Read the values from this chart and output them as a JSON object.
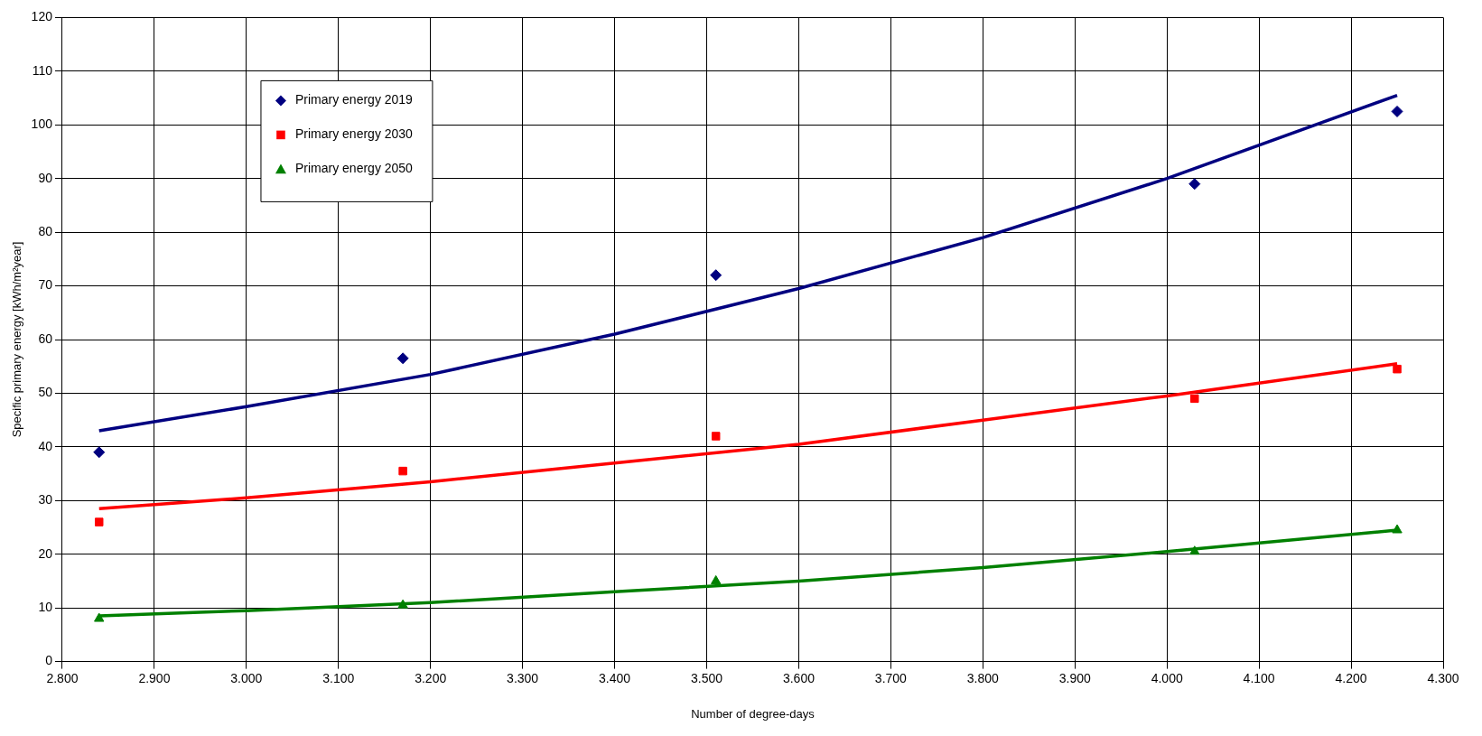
{
  "chart_data": {
    "type": "scatter",
    "xlabel": "Number of degree-days",
    "ylabel": "Specific primary energy [kWh/m²year]",
    "xlim": [
      2800,
      4300
    ],
    "xticks": [
      {
        "value": 2800,
        "label": "2.800"
      },
      {
        "value": 2900,
        "label": "2.900"
      },
      {
        "value": 3000,
        "label": "3.000"
      },
      {
        "value": 3100,
        "label": "3.100"
      },
      {
        "value": 3200,
        "label": "3.200"
      },
      {
        "value": 3300,
        "label": "3.300"
      },
      {
        "value": 3400,
        "label": "3.400"
      },
      {
        "value": 3500,
        "label": "3.500"
      },
      {
        "value": 3600,
        "label": "3.600"
      },
      {
        "value": 3700,
        "label": "3.700"
      },
      {
        "value": 3800,
        "label": "3.800"
      },
      {
        "value": 3900,
        "label": "3.900"
      },
      {
        "value": 4000,
        "label": "4.000"
      },
      {
        "value": 4100,
        "label": "4.100"
      },
      {
        "value": 4200,
        "label": "4.200"
      },
      {
        "value": 4300,
        "label": "4.300"
      }
    ],
    "ylim": [
      0,
      120
    ],
    "yticks": [
      0,
      10,
      20,
      30,
      40,
      50,
      60,
      70,
      80,
      90,
      100,
      110,
      120
    ],
    "grid": true,
    "legend": "top left",
    "series": [
      {
        "name": "Primary energy 2019",
        "marker": "diamond",
        "color": "#000080",
        "x": [
          2840,
          3170,
          3510,
          4030,
          4250
        ],
        "values": [
          39,
          56.5,
          72,
          89,
          102.5
        ]
      },
      {
        "name": "Primary energy 2030",
        "marker": "square",
        "color": "#ff0000",
        "x": [
          2840,
          3170,
          3510,
          4030,
          4250
        ],
        "values": [
          26,
          35.5,
          42,
          49,
          54.5
        ]
      },
      {
        "name": "Primary energy 2050",
        "marker": "triangle",
        "color": "#008000",
        "x": [
          2840,
          3170,
          3510,
          4030,
          4250
        ],
        "values": [
          8,
          10.5,
          15,
          20.5,
          24.5
        ]
      },
      {
        "type": "line",
        "marker": "none",
        "color": "#000080",
        "x": [
          2840,
          3000,
          3200,
          3400,
          3600,
          3800,
          4000,
          4250
        ],
        "values": [
          43,
          47.5,
          53.5,
          61,
          69.5,
          79,
          90,
          105.5
        ]
      },
      {
        "type": "line",
        "marker": "none",
        "color": "#ff0000",
        "x": [
          2840,
          3000,
          3200,
          3400,
          3600,
          3800,
          4000,
          4250
        ],
        "values": [
          28.5,
          30.5,
          33.5,
          37,
          40.5,
          45,
          49.5,
          55.5
        ]
      },
      {
        "type": "line",
        "marker": "none",
        "color": "#008000",
        "x": [
          2840,
          3000,
          3200,
          3400,
          3600,
          3800,
          4000,
          4250
        ],
        "values": [
          8.5,
          9.5,
          11,
          13,
          15,
          17.5,
          20.5,
          24.5
        ]
      }
    ]
  }
}
